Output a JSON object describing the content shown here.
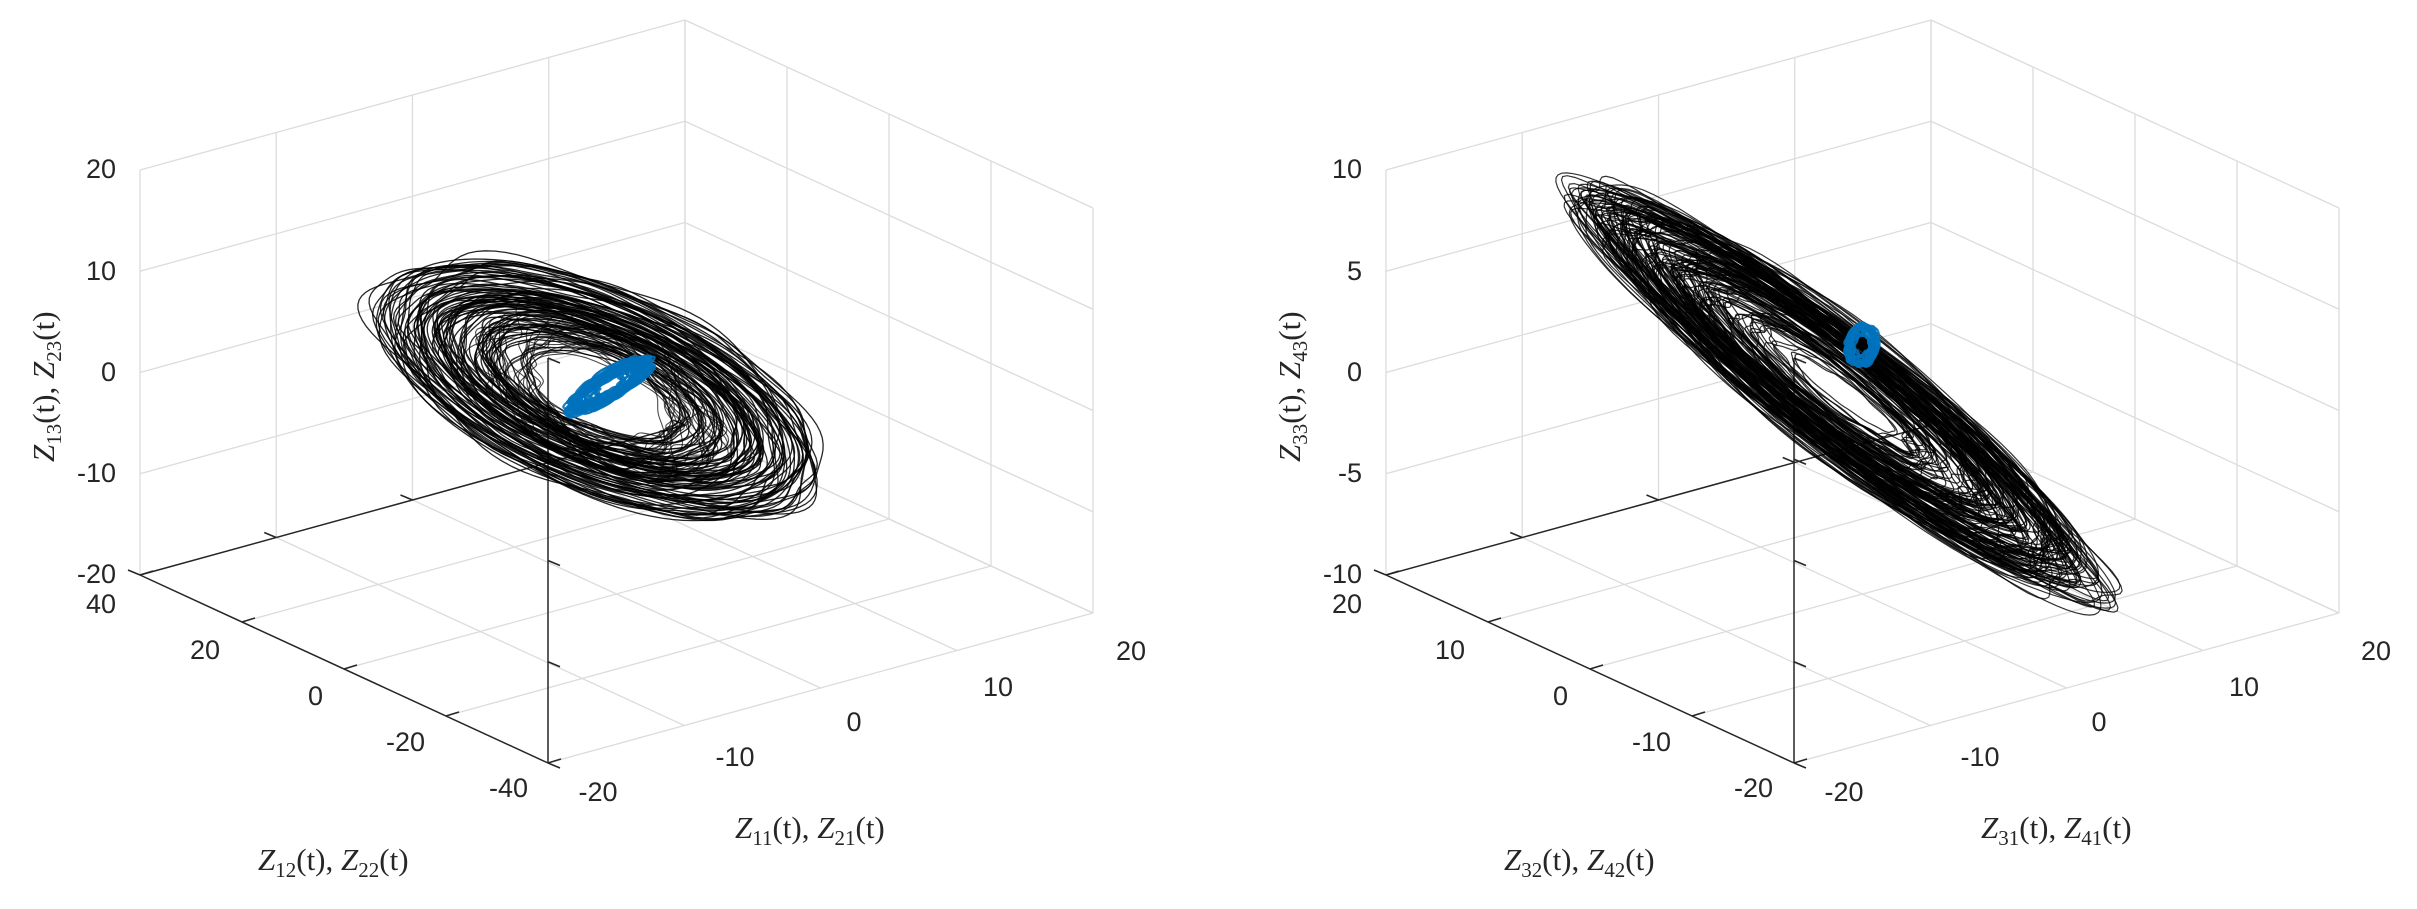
{
  "colors": {
    "trajectory": "#000000",
    "highlight": "#0072BD",
    "grid": "#dcdcdc",
    "axis": "#262626"
  },
  "chart_data": [
    {
      "type": "line3d",
      "xlabel": "Z11(t), Z21(t)",
      "ylabel": "Z12(t), Z22(t)",
      "zlabel": "Z13(t), Z23(t)",
      "xlim": [
        -20,
        20
      ],
      "ylim": [
        -40,
        40
      ],
      "zlim": [
        -20,
        20
      ],
      "xticks": [
        "-20",
        "-10",
        "0",
        "10",
        "20"
      ],
      "yticks": [
        "-40",
        "-20",
        "0",
        "20",
        "40"
      ],
      "zticks": [
        "-20",
        "-10",
        "0",
        "10",
        "20"
      ],
      "grid": true,
      "series": [
        {
          "color": "#000000",
          "shape": "ellipsoidal attractor",
          "x_extent": [
            -17,
            17
          ],
          "y_extent": [
            -35,
            35
          ],
          "z_extent": [
            -7,
            7
          ]
        },
        {
          "color": "#0072BD",
          "shape": "small inner trajectory",
          "x_extent": [
            -3,
            3
          ],
          "y_extent": [
            -6,
            6
          ],
          "z_extent": [
            -2,
            2
          ]
        }
      ]
    },
    {
      "type": "line3d",
      "xlabel": "Z31(t), Z41(t)",
      "ylabel": "Z32(t), Z42(t)",
      "zlabel": "Z33(t), Z43(t)",
      "xlim": [
        -20,
        20
      ],
      "ylim": [
        -20,
        20
      ],
      "zlim": [
        -10,
        10
      ],
      "xticks": [
        "-20",
        "-10",
        "0",
        "10",
        "20"
      ],
      "yticks": [
        "-20",
        "-10",
        "0",
        "10",
        "20"
      ],
      "zticks": [
        "-10",
        "-5",
        "0",
        "5",
        "10"
      ],
      "grid": true,
      "series": [
        {
          "color": "#000000",
          "shape": "elongated diagonal attractor",
          "x_extent": [
            -15,
            15
          ],
          "y_extent": [
            -15,
            15
          ],
          "z_extent": [
            -8,
            8
          ]
        },
        {
          "color": "#0072BD",
          "shape": "small inner trajectory",
          "x_extent": [
            -2,
            2
          ],
          "y_extent": [
            -2,
            2
          ],
          "z_extent": [
            -1,
            3
          ]
        }
      ]
    }
  ],
  "tick_labels": {
    "left": {
      "z": [
        "20",
        "10",
        "0",
        "-10",
        "-20"
      ],
      "y": [
        "40",
        "20",
        "0",
        "-20",
        "-40"
      ],
      "x": [
        "-20",
        "-10",
        "0",
        "10",
        "20"
      ]
    },
    "right": {
      "z": [
        "10",
        "5",
        "0",
        "-5",
        "-10"
      ],
      "y": [
        "20",
        "10",
        "0",
        "-10",
        "-20"
      ],
      "x": [
        "-20",
        "-10",
        "0",
        "10",
        "20"
      ]
    }
  },
  "axis_labels": {
    "left": {
      "x": {
        "a_main": "Z",
        "a_sub": "11",
        "a_arg": "(t), ",
        "b_main": "Z",
        "b_sub": "21",
        "b_arg": "(t)"
      },
      "y": {
        "a_main": "Z",
        "a_sub": "12",
        "a_arg": "(t), ",
        "b_main": "Z",
        "b_sub": "22",
        "b_arg": "(t)"
      },
      "z": {
        "a_main": "Z",
        "a_sub": "13",
        "a_arg": "(t), ",
        "b_main": "Z",
        "b_sub": "23",
        "b_arg": "(t)"
      }
    },
    "right": {
      "x": {
        "a_main": "Z",
        "a_sub": "31",
        "a_arg": "(t), ",
        "b_main": "Z",
        "b_sub": "41",
        "b_arg": "(t)"
      },
      "y": {
        "a_main": "Z",
        "a_sub": "32",
        "a_arg": "(t), ",
        "b_main": "Z",
        "b_sub": "42",
        "b_arg": "(t)"
      },
      "z": {
        "a_main": "Z",
        "a_sub": "33",
        "a_arg": "(t), ",
        "b_main": "Z",
        "b_sub": "43",
        "b_arg": "(t)"
      }
    }
  }
}
